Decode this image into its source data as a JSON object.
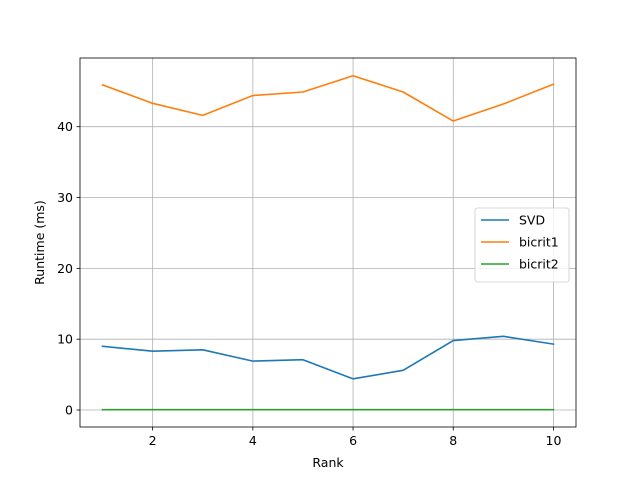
{
  "chart_data": {
    "type": "line",
    "title": "",
    "xlabel": "Rank",
    "ylabel": "Runtime (ms)",
    "x": [
      1,
      2,
      3,
      4,
      5,
      6,
      7,
      8,
      9,
      10
    ],
    "xlim": [
      0.55,
      10.45
    ],
    "ylim": [
      -2.4,
      49.7
    ],
    "x_ticks": [
      2,
      4,
      6,
      8,
      10
    ],
    "x_tick_labels": [
      "2",
      "4",
      "6",
      "8",
      "10"
    ],
    "y_ticks": [
      0,
      10,
      20,
      30,
      40
    ],
    "y_tick_labels": [
      "0",
      "10",
      "20",
      "30",
      "40"
    ],
    "grid": true,
    "legend_position": "center-right",
    "series": [
      {
        "name": "SVD",
        "color": "#1f77b4",
        "values": [
          9.0,
          8.3,
          8.5,
          6.9,
          7.1,
          4.4,
          5.6,
          9.8,
          10.4,
          9.3
        ]
      },
      {
        "name": "bicrit1",
        "color": "#ff7f0e",
        "values": [
          45.9,
          43.3,
          41.6,
          44.4,
          44.9,
          47.2,
          44.9,
          40.8,
          43.2,
          46.0
        ]
      },
      {
        "name": "bicrit2",
        "color": "#2ca02c",
        "values": [
          0.05,
          0.05,
          0.05,
          0.05,
          0.05,
          0.05,
          0.05,
          0.05,
          0.05,
          0.05
        ]
      }
    ]
  }
}
